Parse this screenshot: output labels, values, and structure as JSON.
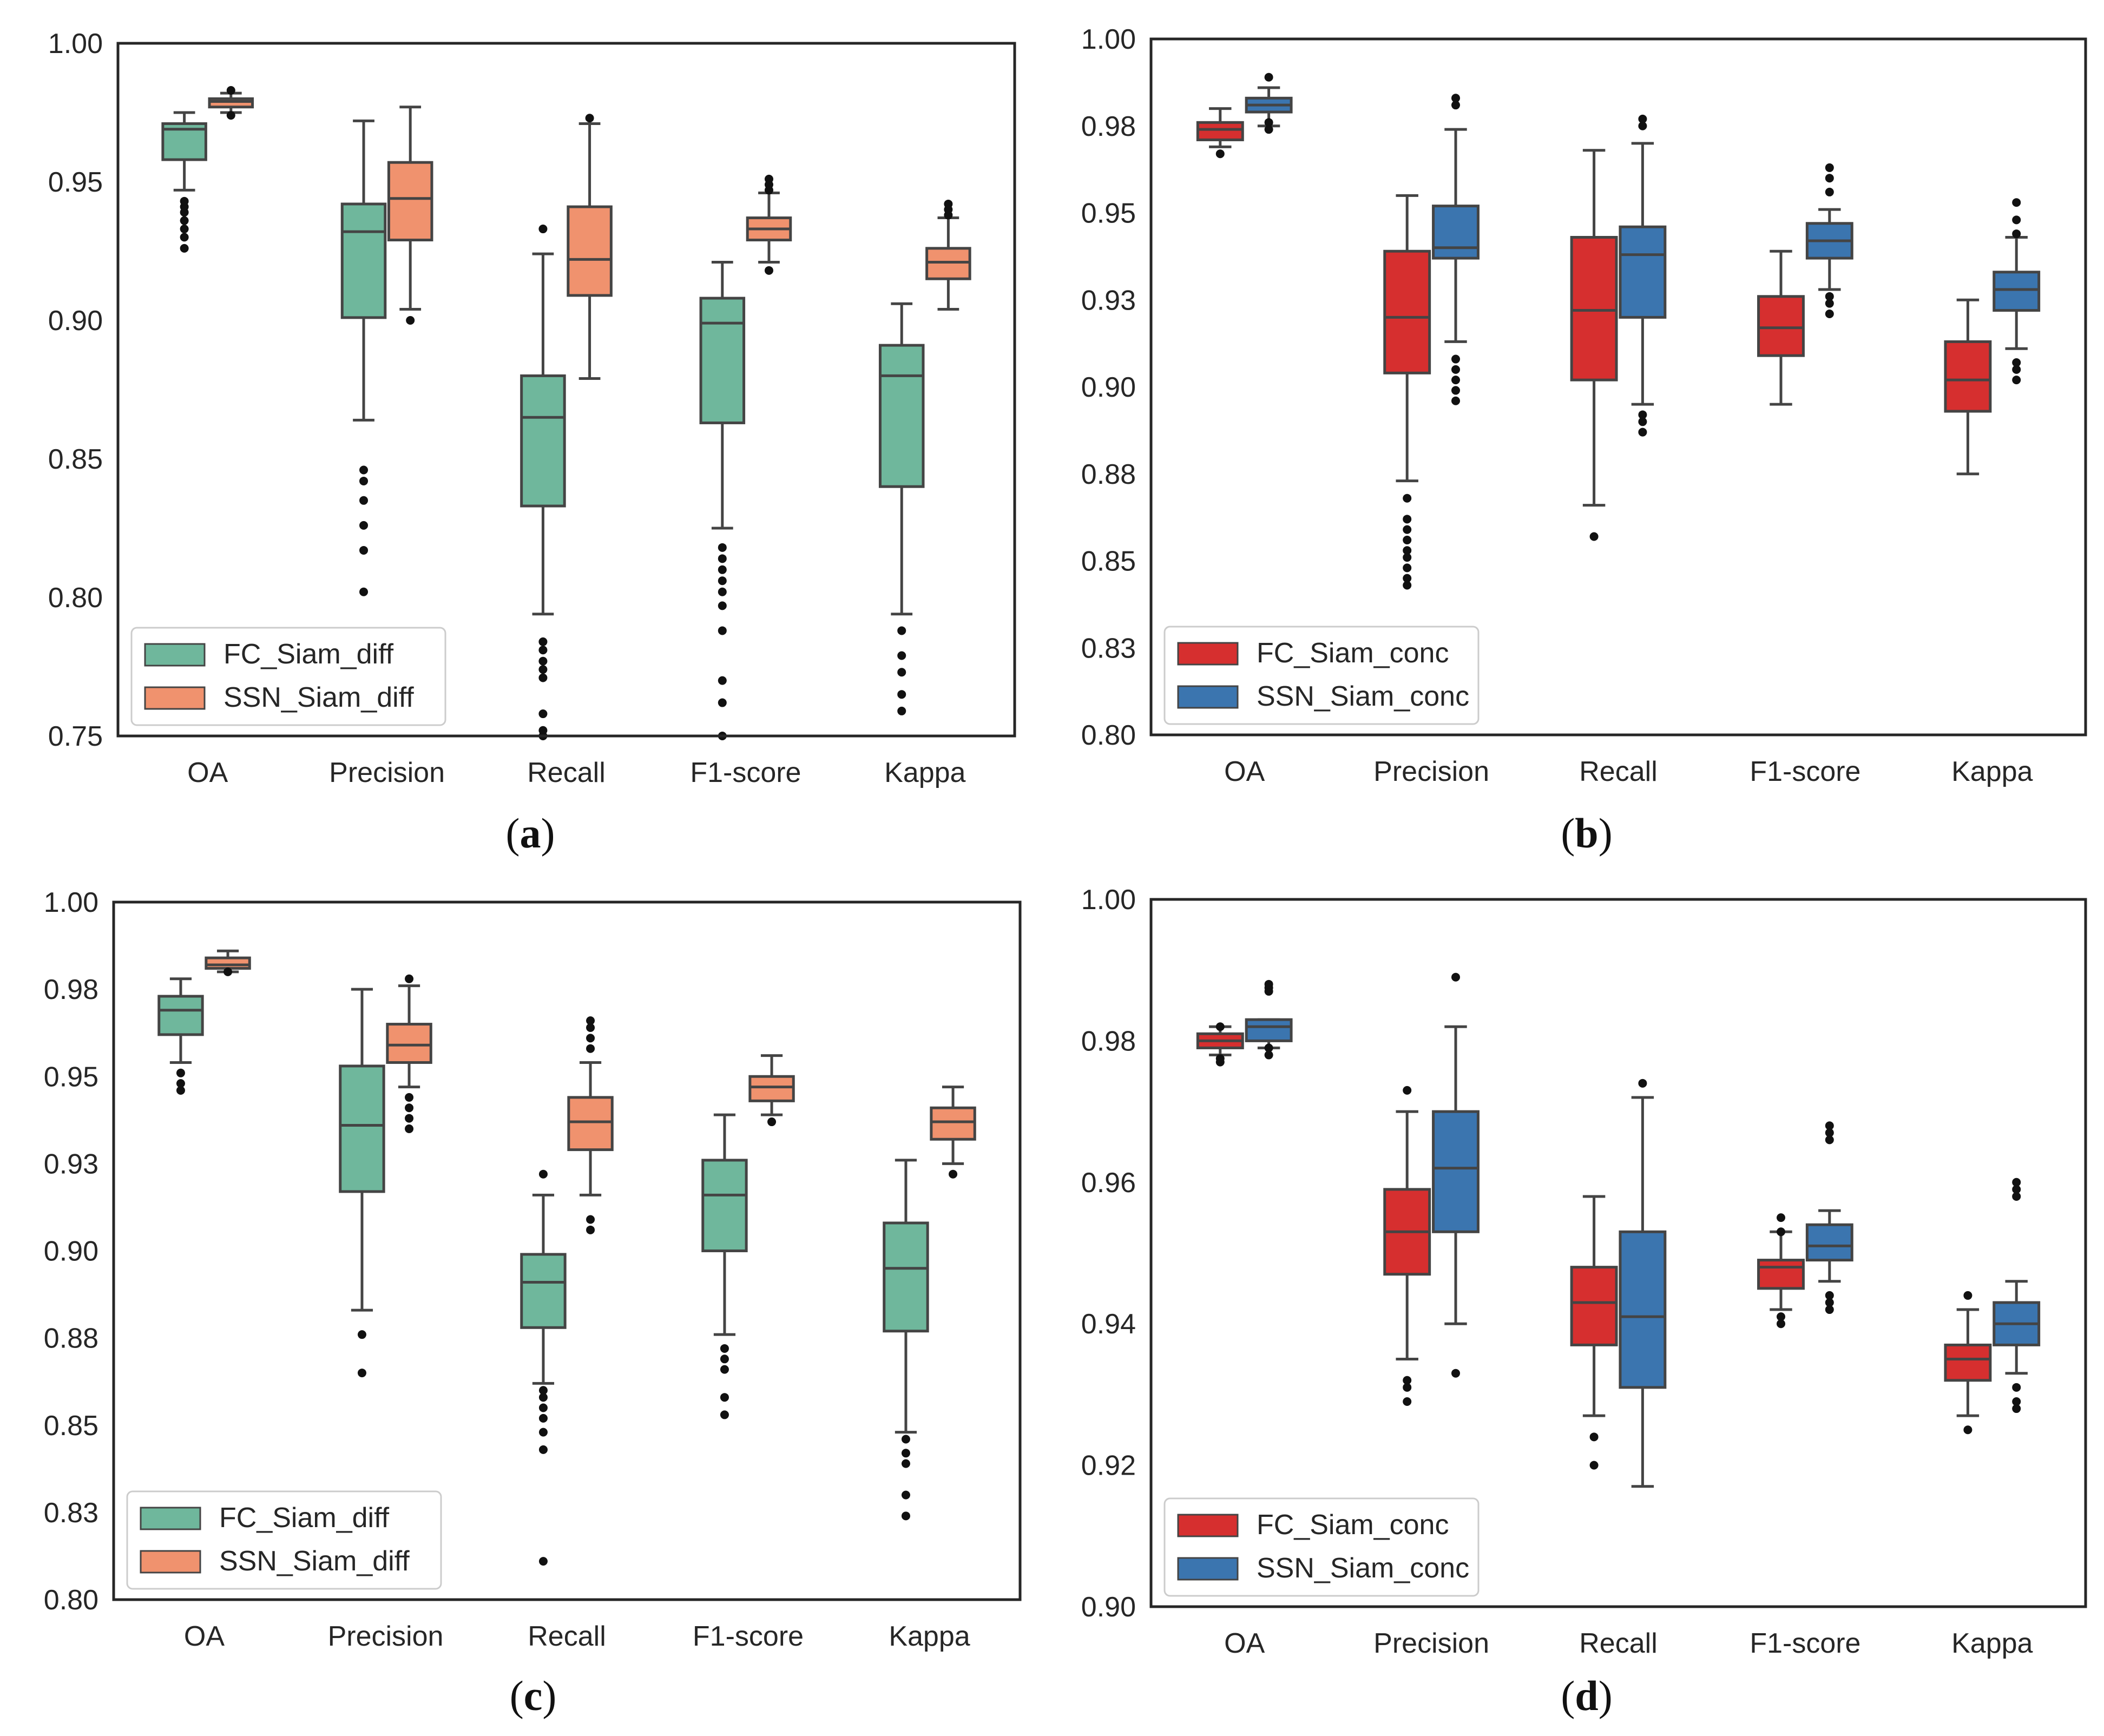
{
  "chart_data": [
    {
      "panel": "a",
      "type": "box",
      "caption_letter": "a",
      "categories": [
        "OA",
        "Precision",
        "Recall",
        "F1-score",
        "Kappa"
      ],
      "ylim": [
        0.75,
        1.0
      ],
      "yticks": [
        0.75,
        0.8,
        0.85,
        0.9,
        0.95,
        1.0
      ],
      "ytick_labels": [
        "0.75",
        "0.80",
        "0.85",
        "0.90",
        "0.95",
        "1.00"
      ],
      "legend_position": "lower-left",
      "series": [
        {
          "name": "FC_Siam_diff",
          "color": "#6fb79c",
          "boxes": [
            {
              "whislo": 0.947,
              "q1": 0.958,
              "med": 0.969,
              "q3": 0.971,
              "whishi": 0.975,
              "fliers": [
                0.926,
                0.93,
                0.933,
                0.936,
                0.939,
                0.941,
                0.943
              ]
            },
            {
              "whislo": 0.864,
              "q1": 0.901,
              "med": 0.932,
              "q3": 0.942,
              "whishi": 0.972,
              "fliers": [
                0.802,
                0.817,
                0.826,
                0.835,
                0.842,
                0.846
              ]
            },
            {
              "whislo": 0.794,
              "q1": 0.833,
              "med": 0.865,
              "q3": 0.88,
              "whishi": 0.924,
              "fliers": [
                0.75,
                0.752,
                0.758,
                0.771,
                0.774,
                0.777,
                0.781,
                0.784,
                0.933
              ]
            },
            {
              "whislo": 0.825,
              "q1": 0.863,
              "med": 0.899,
              "q3": 0.908,
              "whishi": 0.921,
              "fliers": [
                0.75,
                0.762,
                0.77,
                0.788,
                0.797,
                0.802,
                0.806,
                0.81,
                0.814,
                0.818
              ]
            },
            {
              "whislo": 0.794,
              "q1": 0.84,
              "med": 0.88,
              "q3": 0.891,
              "whishi": 0.906,
              "fliers": [
                0.759,
                0.765,
                0.773,
                0.779,
                0.788
              ]
            }
          ]
        },
        {
          "name": "SSN_Siam_diff",
          "color": "#f0926e",
          "boxes": [
            {
              "whislo": 0.975,
              "q1": 0.977,
              "med": 0.979,
              "q3": 0.98,
              "whishi": 0.982,
              "fliers": [
                0.974,
                0.983
              ]
            },
            {
              "whislo": 0.904,
              "q1": 0.929,
              "med": 0.944,
              "q3": 0.957,
              "whishi": 0.977,
              "fliers": [
                0.9
              ]
            },
            {
              "whislo": 0.879,
              "q1": 0.909,
              "med": 0.922,
              "q3": 0.941,
              "whishi": 0.971,
              "fliers": [
                0.973
              ]
            },
            {
              "whislo": 0.921,
              "q1": 0.929,
              "med": 0.933,
              "q3": 0.937,
              "whishi": 0.946,
              "fliers": [
                0.918,
                0.947,
                0.949,
                0.951
              ]
            },
            {
              "whislo": 0.904,
              "q1": 0.915,
              "med": 0.921,
              "q3": 0.926,
              "whishi": 0.937,
              "fliers": [
                0.938,
                0.94,
                0.942
              ]
            }
          ]
        }
      ]
    },
    {
      "panel": "b",
      "type": "box",
      "caption_letter": "b",
      "categories": [
        "OA",
        "Precision",
        "Recall",
        "F1-score",
        "Kappa"
      ],
      "ylim": [
        0.8,
        1.0
      ],
      "yticks": [
        0.8,
        0.825,
        0.85,
        0.875,
        0.9,
        0.925,
        0.95,
        0.975,
        1.0
      ],
      "ytick_labels": [
        "0.80",
        "0.83",
        "0.85",
        "0.88",
        "0.90",
        "0.93",
        "0.95",
        "0.98",
        "1.00"
      ],
      "legend_position": "lower-left",
      "series": [
        {
          "name": "FC_Siam_conc",
          "color": "#d62f2f",
          "boxes": [
            {
              "whislo": 0.969,
              "q1": 0.971,
              "med": 0.974,
              "q3": 0.976,
              "whishi": 0.98,
              "fliers": [
                0.967
              ]
            },
            {
              "whislo": 0.873,
              "q1": 0.904,
              "med": 0.92,
              "q3": 0.939,
              "whishi": 0.955,
              "fliers": [
                0.843,
                0.845,
                0.848,
                0.851,
                0.853,
                0.856,
                0.859,
                0.862,
                0.868
              ]
            },
            {
              "whislo": 0.866,
              "q1": 0.902,
              "med": 0.922,
              "q3": 0.943,
              "whishi": 0.968,
              "fliers": [
                0.857
              ]
            },
            {
              "whislo": 0.895,
              "q1": 0.909,
              "med": 0.917,
              "q3": 0.926,
              "whishi": 0.939,
              "fliers": []
            },
            {
              "whislo": 0.875,
              "q1": 0.893,
              "med": 0.902,
              "q3": 0.913,
              "whishi": 0.925,
              "fliers": []
            }
          ]
        },
        {
          "name": "SSN_Siam_conc",
          "color": "#3b75af",
          "boxes": [
            {
              "whislo": 0.975,
              "q1": 0.979,
              "med": 0.981,
              "q3": 0.983,
              "whishi": 0.986,
              "fliers": [
                0.974,
                0.976,
                0.989
              ]
            },
            {
              "whislo": 0.913,
              "q1": 0.937,
              "med": 0.94,
              "q3": 0.952,
              "whishi": 0.974,
              "fliers": [
                0.896,
                0.899,
                0.902,
                0.905,
                0.908,
                0.981,
                0.983
              ]
            },
            {
              "whislo": 0.895,
              "q1": 0.92,
              "med": 0.938,
              "q3": 0.946,
              "whishi": 0.97,
              "fliers": [
                0.887,
                0.89,
                0.892,
                0.975,
                0.977
              ]
            },
            {
              "whislo": 0.928,
              "q1": 0.937,
              "med": 0.942,
              "q3": 0.947,
              "whishi": 0.951,
              "fliers": [
                0.921,
                0.924,
                0.926,
                0.956,
                0.96,
                0.963
              ]
            },
            {
              "whislo": 0.911,
              "q1": 0.922,
              "med": 0.928,
              "q3": 0.933,
              "whishi": 0.943,
              "fliers": [
                0.902,
                0.905,
                0.907,
                0.944,
                0.948,
                0.953
              ]
            }
          ]
        }
      ]
    },
    {
      "panel": "c",
      "type": "box",
      "caption_letter": "c",
      "categories": [
        "OA",
        "Precision",
        "Recall",
        "F1-score",
        "Kappa"
      ],
      "ylim": [
        0.8,
        1.0
      ],
      "yticks": [
        0.8,
        0.825,
        0.85,
        0.875,
        0.9,
        0.925,
        0.95,
        0.975,
        1.0
      ],
      "ytick_labels": [
        "0.80",
        "0.83",
        "0.85",
        "0.88",
        "0.90",
        "0.93",
        "0.95",
        "0.98",
        "1.00"
      ],
      "legend_position": "lower-left",
      "series": [
        {
          "name": "FC_Siam_diff",
          "color": "#6fb79c",
          "boxes": [
            {
              "whislo": 0.954,
              "q1": 0.962,
              "med": 0.969,
              "q3": 0.973,
              "whishi": 0.978,
              "fliers": [
                0.946,
                0.948,
                0.951
              ]
            },
            {
              "whislo": 0.883,
              "q1": 0.917,
              "med": 0.936,
              "q3": 0.953,
              "whishi": 0.975,
              "fliers": [
                0.865,
                0.876
              ]
            },
            {
              "whislo": 0.862,
              "q1": 0.878,
              "med": 0.891,
              "q3": 0.899,
              "whishi": 0.916,
              "fliers": [
                0.811,
                0.843,
                0.848,
                0.852,
                0.855,
                0.858,
                0.86,
                0.922
              ]
            },
            {
              "whislo": 0.876,
              "q1": 0.9,
              "med": 0.916,
              "q3": 0.926,
              "whishi": 0.939,
              "fliers": [
                0.853,
                0.858,
                0.866,
                0.869,
                0.872
              ]
            },
            {
              "whislo": 0.848,
              "q1": 0.877,
              "med": 0.895,
              "q3": 0.908,
              "whishi": 0.926,
              "fliers": [
                0.824,
                0.83,
                0.839,
                0.842,
                0.846
              ]
            }
          ]
        },
        {
          "name": "SSN_Siam_diff",
          "color": "#f0926e",
          "boxes": [
            {
              "whislo": 0.98,
              "q1": 0.981,
              "med": 0.982,
              "q3": 0.984,
              "whishi": 0.986,
              "fliers": [
                0.98
              ]
            },
            {
              "whislo": 0.947,
              "q1": 0.954,
              "med": 0.959,
              "q3": 0.965,
              "whishi": 0.976,
              "fliers": [
                0.935,
                0.938,
                0.941,
                0.944,
                0.978
              ]
            },
            {
              "whislo": 0.916,
              "q1": 0.929,
              "med": 0.937,
              "q3": 0.944,
              "whishi": 0.954,
              "fliers": [
                0.906,
                0.909,
                0.958,
                0.961,
                0.964,
                0.966
              ]
            },
            {
              "whislo": 0.939,
              "q1": 0.943,
              "med": 0.947,
              "q3": 0.95,
              "whishi": 0.956,
              "fliers": [
                0.937
              ]
            },
            {
              "whislo": 0.925,
              "q1": 0.932,
              "med": 0.937,
              "q3": 0.941,
              "whishi": 0.947,
              "fliers": [
                0.922
              ]
            }
          ]
        }
      ]
    },
    {
      "panel": "d",
      "type": "box",
      "caption_letter": "d",
      "categories": [
        "OA",
        "Precision",
        "Recall",
        "F1-score",
        "Kappa"
      ],
      "ylim": [
        0.9,
        1.0
      ],
      "yticks": [
        0.9,
        0.92,
        0.94,
        0.96,
        0.98,
        1.0
      ],
      "ytick_labels": [
        "0.90",
        "0.92",
        "0.94",
        "0.96",
        "0.98",
        "1.00"
      ],
      "legend_position": "lower-left",
      "series": [
        {
          "name": "FC_Siam_conc",
          "color": "#d62f2f",
          "boxes": [
            {
              "whislo": 0.978,
              "q1": 0.979,
              "med": 0.98,
              "q3": 0.981,
              "whishi": 0.982,
              "fliers": [
                0.977,
                0.9775,
                0.982
              ]
            },
            {
              "whislo": 0.935,
              "q1": 0.947,
              "med": 0.953,
              "q3": 0.959,
              "whishi": 0.97,
              "fliers": [
                0.929,
                0.931,
                0.932,
                0.973
              ]
            },
            {
              "whislo": 0.927,
              "q1": 0.937,
              "med": 0.943,
              "q3": 0.948,
              "whishi": 0.958,
              "fliers": [
                0.92,
                0.924
              ]
            },
            {
              "whislo": 0.942,
              "q1": 0.945,
              "med": 0.948,
              "q3": 0.949,
              "whishi": 0.953,
              "fliers": [
                0.94,
                0.941,
                0.953,
                0.955
              ]
            },
            {
              "whislo": 0.927,
              "q1": 0.932,
              "med": 0.935,
              "q3": 0.937,
              "whishi": 0.942,
              "fliers": [
                0.925,
                0.944
              ]
            }
          ]
        },
        {
          "name": "SSN_Siam_conc",
          "color": "#3b75af",
          "boxes": [
            {
              "whislo": 0.979,
              "q1": 0.98,
              "med": 0.982,
              "q3": 0.983,
              "whishi": 0.983,
              "fliers": [
                0.978,
                0.979,
                0.987,
                0.9875,
                0.988
              ]
            },
            {
              "whislo": 0.94,
              "q1": 0.953,
              "med": 0.962,
              "q3": 0.97,
              "whishi": 0.982,
              "fliers": [
                0.933,
                0.989
              ]
            },
            {
              "whislo": 0.917,
              "q1": 0.931,
              "med": 0.941,
              "q3": 0.953,
              "whishi": 0.972,
              "fliers": [
                0.974
              ]
            },
            {
              "whislo": 0.946,
              "q1": 0.949,
              "med": 0.951,
              "q3": 0.954,
              "whishi": 0.956,
              "fliers": [
                0.942,
                0.943,
                0.944,
                0.966,
                0.967,
                0.968
              ]
            },
            {
              "whislo": 0.933,
              "q1": 0.937,
              "med": 0.94,
              "q3": 0.943,
              "whishi": 0.946,
              "fliers": [
                0.928,
                0.929,
                0.931,
                0.958,
                0.959,
                0.96
              ]
            }
          ]
        }
      ]
    }
  ]
}
